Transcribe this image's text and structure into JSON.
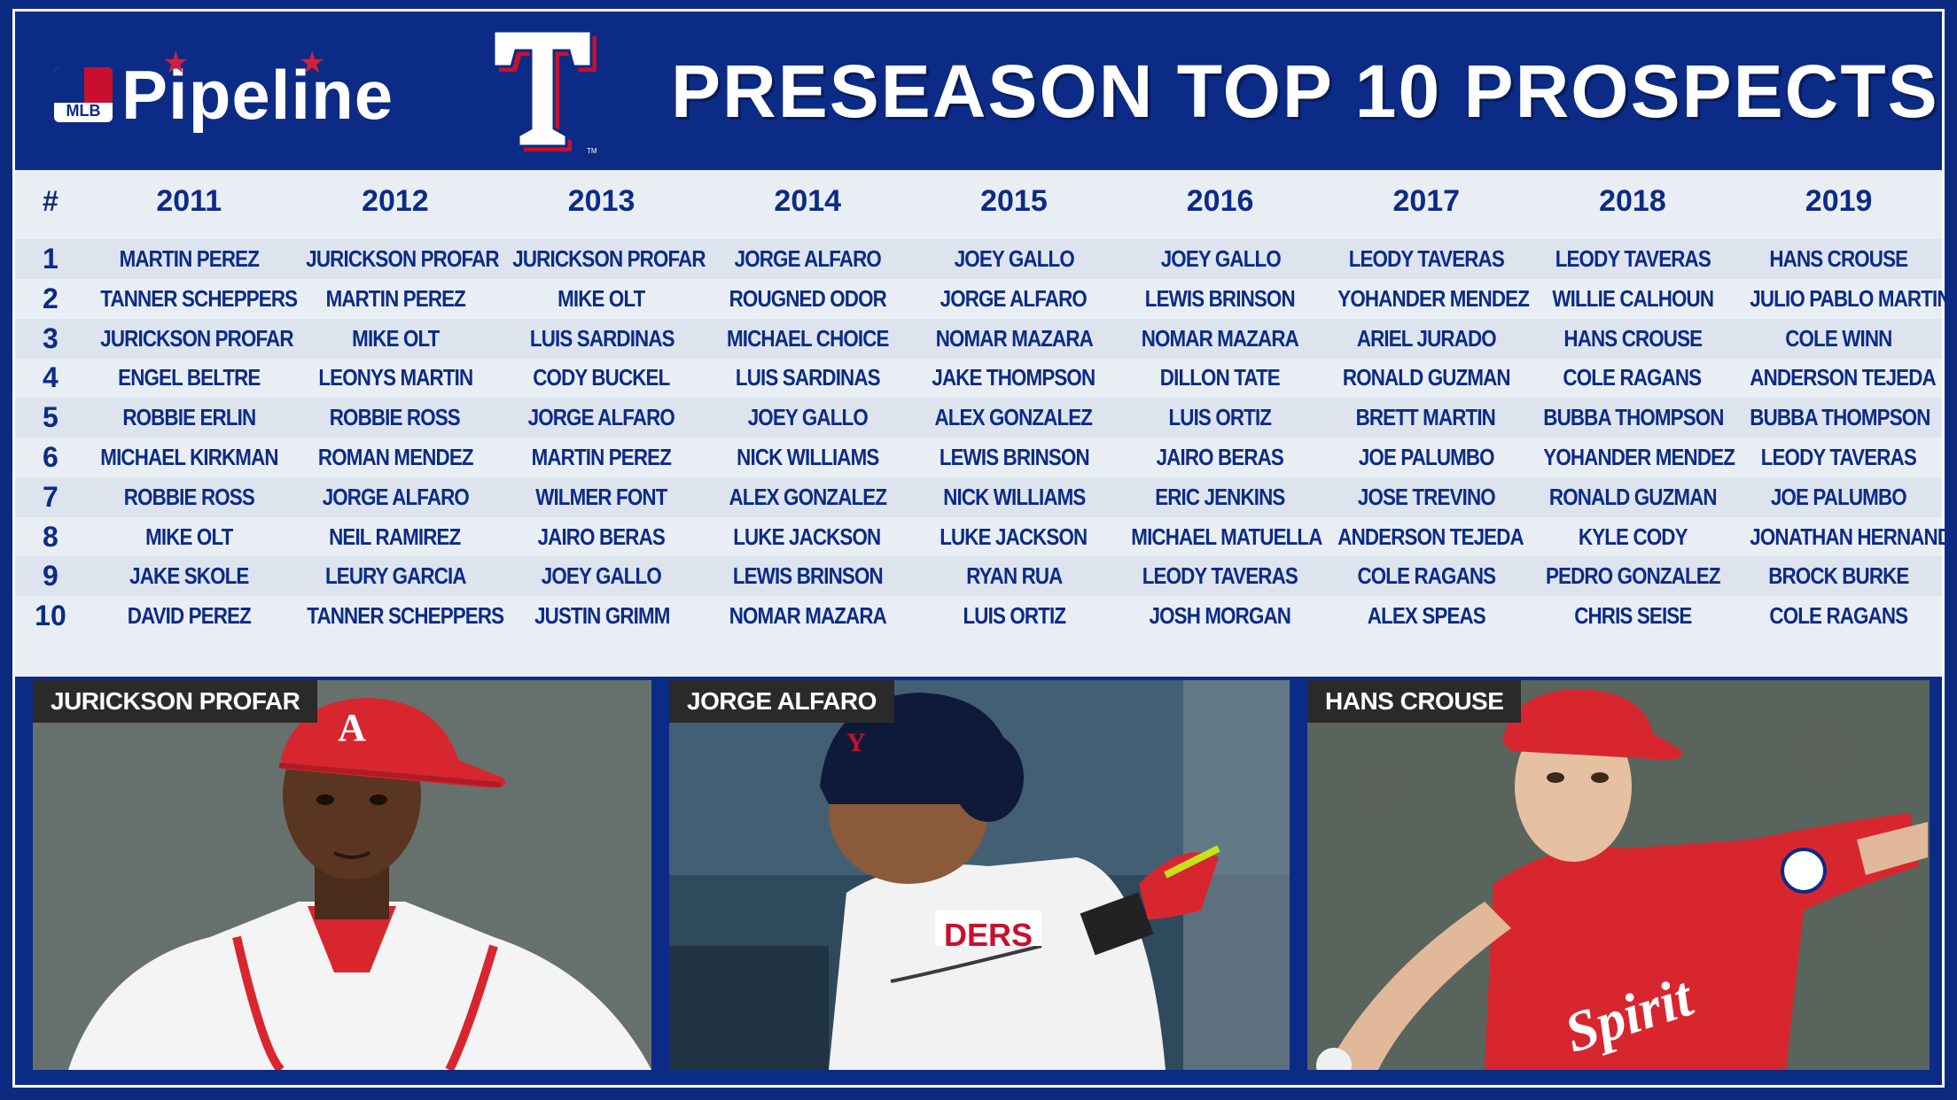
{
  "header": {
    "brand": "Pipeline",
    "brand_badge": "MLB",
    "team_logo_letter": "T",
    "title": "PRESEASON TOP 10 PROSPECTS"
  },
  "table": {
    "rank_header": "#",
    "years": [
      "2011",
      "2012",
      "2013",
      "2014",
      "2015",
      "2016",
      "2017",
      "2018",
      "2019"
    ],
    "ranks": [
      "1",
      "2",
      "3",
      "4",
      "5",
      "6",
      "7",
      "8",
      "9",
      "10"
    ],
    "rows": [
      [
        "MARTIN PEREZ",
        "JURICKSON PROFAR",
        "JURICKSON PROFAR",
        "JORGE ALFARO",
        "JOEY GALLO",
        "JOEY GALLO",
        "LEODY TAVERAS",
        "LEODY TAVERAS",
        "HANS CROUSE"
      ],
      [
        "TANNER SCHEPPERS",
        "MARTIN PEREZ",
        "MIKE OLT",
        "ROUGNED ODOR",
        "JORGE ALFARO",
        "LEWIS BRINSON",
        "YOHANDER MENDEZ",
        "WILLIE CALHOUN",
        "JULIO PABLO MARTINEZ"
      ],
      [
        "JURICKSON PROFAR",
        "MIKE OLT",
        "LUIS SARDINAS",
        "MICHAEL CHOICE",
        "NOMAR MAZARA",
        "NOMAR MAZARA",
        "ARIEL JURADO",
        "HANS CROUSE",
        "COLE WINN"
      ],
      [
        "ENGEL BELTRE",
        "LEONYS MARTIN",
        "CODY BUCKEL",
        "LUIS SARDINAS",
        "JAKE THOMPSON",
        "DILLON TATE",
        "RONALD GUZMAN",
        "COLE RAGANS",
        "ANDERSON TEJEDA"
      ],
      [
        "ROBBIE ERLIN",
        "ROBBIE ROSS",
        "JORGE ALFARO",
        "JOEY GALLO",
        "ALEX GONZALEZ",
        "LUIS ORTIZ",
        "BRETT MARTIN",
        "BUBBA THOMPSON",
        "BUBBA THOMPSON"
      ],
      [
        "MICHAEL KIRKMAN",
        "ROMAN MENDEZ",
        "MARTIN PEREZ",
        "NICK WILLIAMS",
        "LEWIS BRINSON",
        "JAIRO BERAS",
        "JOE PALUMBO",
        "YOHANDER MENDEZ",
        "LEODY TAVERAS"
      ],
      [
        "ROBBIE ROSS",
        "JORGE ALFARO",
        "WILMER FONT",
        "ALEX GONZALEZ",
        "NICK WILLIAMS",
        "ERIC JENKINS",
        "JOSE TREVINO",
        "RONALD GUZMAN",
        "JOE PALUMBO"
      ],
      [
        "MIKE OLT",
        "NEIL RAMIREZ",
        "JAIRO BERAS",
        "LUKE JACKSON",
        "LUKE JACKSON",
        "MICHAEL MATUELLA",
        "ANDERSON TEJEDA",
        "KYLE CODY",
        "JONATHAN HERNANDEZ"
      ],
      [
        "JAKE SKOLE",
        "LEURY GARCIA",
        "JOEY GALLO",
        "LEWIS BRINSON",
        "RYAN RUA",
        "LEODY TAVERAS",
        "COLE RAGANS",
        "PEDRO GONZALEZ",
        "BROCK BURKE"
      ],
      [
        "DAVID PEREZ",
        "TANNER SCHEPPERS",
        "JUSTIN GRIMM",
        "NOMAR MAZARA",
        "LUIS ORTIZ",
        "JOSH MORGAN",
        "ALEX SPEAS",
        "CHRIS SEISE",
        "COLE RAGANS"
      ]
    ]
  },
  "photos": [
    {
      "caption": "JURICKSON PROFAR",
      "cap_logo": "A"
    },
    {
      "caption": "JORGE ALFARO",
      "jersey_text": "DERS"
    },
    {
      "caption": "HANS CROUSE",
      "jersey_text": "Spirit"
    }
  ],
  "colors": {
    "navy": "#0c2b86",
    "red": "#c8102e",
    "table_bg": "#e9eef5",
    "table_alt": "#dde4ee"
  }
}
